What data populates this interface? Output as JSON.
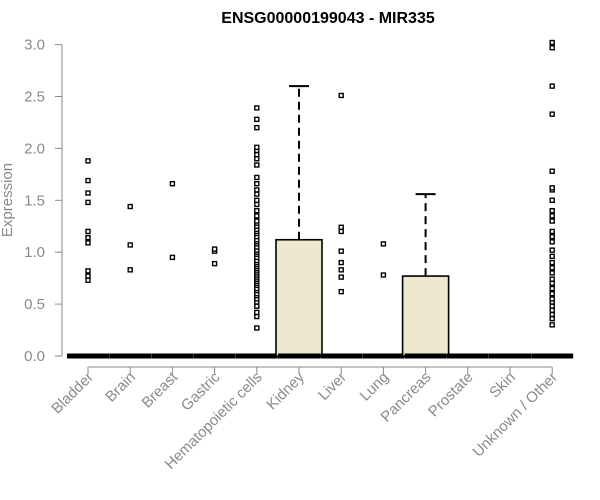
{
  "chart_data": {
    "type": "boxplot",
    "title": "ENSG00000199043 - MIR335",
    "ylabel": "Expression",
    "xlabel": "",
    "ylim": [
      0,
      3.1
    ],
    "yticks": [
      "0.0",
      "0.5",
      "1.0",
      "1.5",
      "2.0",
      "2.5",
      "3.0"
    ],
    "grid": false,
    "box_fill": "#ede8cf",
    "axis_color": "#8a8a8a",
    "categories": [
      "Bladder",
      "Brain",
      "Breast",
      "Gastric",
      "Hematopoietic cells",
      "Kidney",
      "Liver",
      "Lung",
      "Pancreas",
      "Prostate",
      "Skin",
      "Unknown / Other"
    ],
    "series": [
      {
        "category": "Bladder",
        "q1": 0,
        "median": 0,
        "q3": 0,
        "whisker_high": 0,
        "outliers": [
          0.73,
          0.77,
          0.82,
          1.09,
          1.14,
          1.2,
          1.48,
          1.57,
          1.69,
          1.88
        ]
      },
      {
        "category": "Brain",
        "q1": 0,
        "median": 0,
        "q3": 0,
        "whisker_high": 0,
        "outliers": [
          0.83,
          1.07,
          1.44
        ]
      },
      {
        "category": "Breast",
        "q1": 0,
        "median": 0,
        "q3": 0,
        "whisker_high": 0,
        "outliers": [
          0.95,
          1.66
        ]
      },
      {
        "category": "Gastric",
        "q1": 0,
        "median": 0,
        "q3": 0,
        "whisker_high": 0,
        "outliers": [
          0.89,
          1.01,
          1.03
        ]
      },
      {
        "category": "Hematopoietic cells",
        "q1": 0,
        "median": 0,
        "q3": 0,
        "whisker_high": 0,
        "outliers": [
          0.27,
          0.38,
          0.42,
          0.48,
          0.52,
          0.55,
          0.58,
          0.6,
          0.63,
          0.65,
          0.68,
          0.7,
          0.72,
          0.74,
          0.76,
          0.78,
          0.8,
          0.82,
          0.84,
          0.86,
          0.88,
          0.9,
          0.92,
          0.95,
          0.98,
          1.0,
          1.02,
          1.05,
          1.08,
          1.1,
          1.12,
          1.15,
          1.18,
          1.2,
          1.22,
          1.25,
          1.28,
          1.3,
          1.35,
          1.4,
          1.46,
          1.5,
          1.56,
          1.6,
          1.66,
          1.72,
          1.84,
          1.9,
          1.94,
          1.98,
          2.01,
          2.2,
          2.28,
          2.39
        ]
      },
      {
        "category": "Kidney",
        "q1": 0,
        "median": 0,
        "q3": 1.12,
        "whisker_high": 2.6,
        "outliers": []
      },
      {
        "category": "Liver",
        "q1": 0,
        "median": 0,
        "q3": 0,
        "whisker_high": 0,
        "outliers": [
          0.62,
          0.76,
          0.83,
          0.9,
          1.01,
          1.2,
          1.24,
          2.51
        ]
      },
      {
        "category": "Lung",
        "q1": 0,
        "median": 0,
        "q3": 0,
        "whisker_high": 0,
        "outliers": [
          0.78,
          1.08
        ]
      },
      {
        "category": "Pancreas",
        "q1": 0,
        "median": 0,
        "q3": 0.77,
        "whisker_high": 1.56,
        "outliers": []
      },
      {
        "category": "Prostate",
        "q1": 0,
        "median": 0,
        "q3": 0,
        "whisker_high": 0,
        "outliers": []
      },
      {
        "category": "Skin",
        "q1": 0,
        "median": 0,
        "q3": 0,
        "whisker_high": 0,
        "outliers": []
      },
      {
        "category": "Unknown / Other",
        "q1": 0,
        "median": 0,
        "q3": 0,
        "whisker_high": 0,
        "outliers": [
          0.3,
          0.36,
          0.4,
          0.44,
          0.48,
          0.52,
          0.55,
          0.6,
          0.65,
          0.7,
          0.74,
          0.8,
          0.85,
          0.9,
          0.96,
          1.02,
          1.1,
          1.15,
          1.2,
          1.3,
          1.35,
          1.4,
          1.5,
          1.6,
          1.62,
          1.78,
          2.33,
          2.6,
          2.97,
          3.02
        ]
      }
    ]
  }
}
